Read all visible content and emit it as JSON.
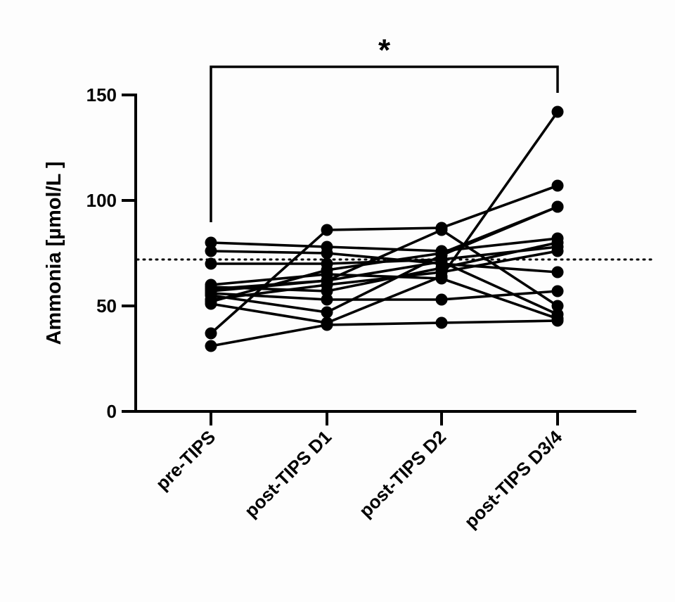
{
  "chart_data": {
    "type": "line",
    "ylabel": "Ammonia [µmol/L ]",
    "xlabel": "",
    "categories": [
      "pre-TIPS",
      "post-TIPS D1",
      "post-TIPS D2",
      "post-TIPS D3/4"
    ],
    "ylim": [
      0,
      150
    ],
    "yticks": [
      0,
      50,
      100,
      150
    ],
    "reference_line": 72,
    "significance": {
      "from": "pre-TIPS",
      "to": "post-TIPS D3/4",
      "label": "*"
    },
    "grid": false,
    "marker_color": "#000000",
    "series": [
      {
        "values": [
          80,
          78,
          76,
          82
        ]
      },
      {
        "values": [
          76,
          75,
          70,
          66
        ]
      },
      {
        "values": [
          70,
          70,
          72,
          78
        ]
      },
      {
        "values": [
          37,
          86,
          87,
          107
        ]
      },
      {
        "values": [
          31,
          41,
          42,
          43
        ]
      },
      {
        "values": [
          60,
          65,
          63,
          44
        ]
      },
      {
        "values": [
          58,
          62,
          86,
          50
        ]
      },
      {
        "values": [
          56,
          53,
          53,
          57
        ]
      },
      {
        "values": [
          53,
          60,
          66,
          76
        ]
      },
      {
        "values": [
          55,
          47,
          74,
          97
        ]
      },
      {
        "values": [
          52,
          67,
          75,
          97
        ]
      },
      {
        "values": [
          51,
          42,
          64,
          142
        ]
      },
      {
        "values": [
          59,
          57,
          68,
          80
        ]
      },
      {
        "values": [
          57,
          62,
          71,
          46
        ]
      }
    ]
  }
}
